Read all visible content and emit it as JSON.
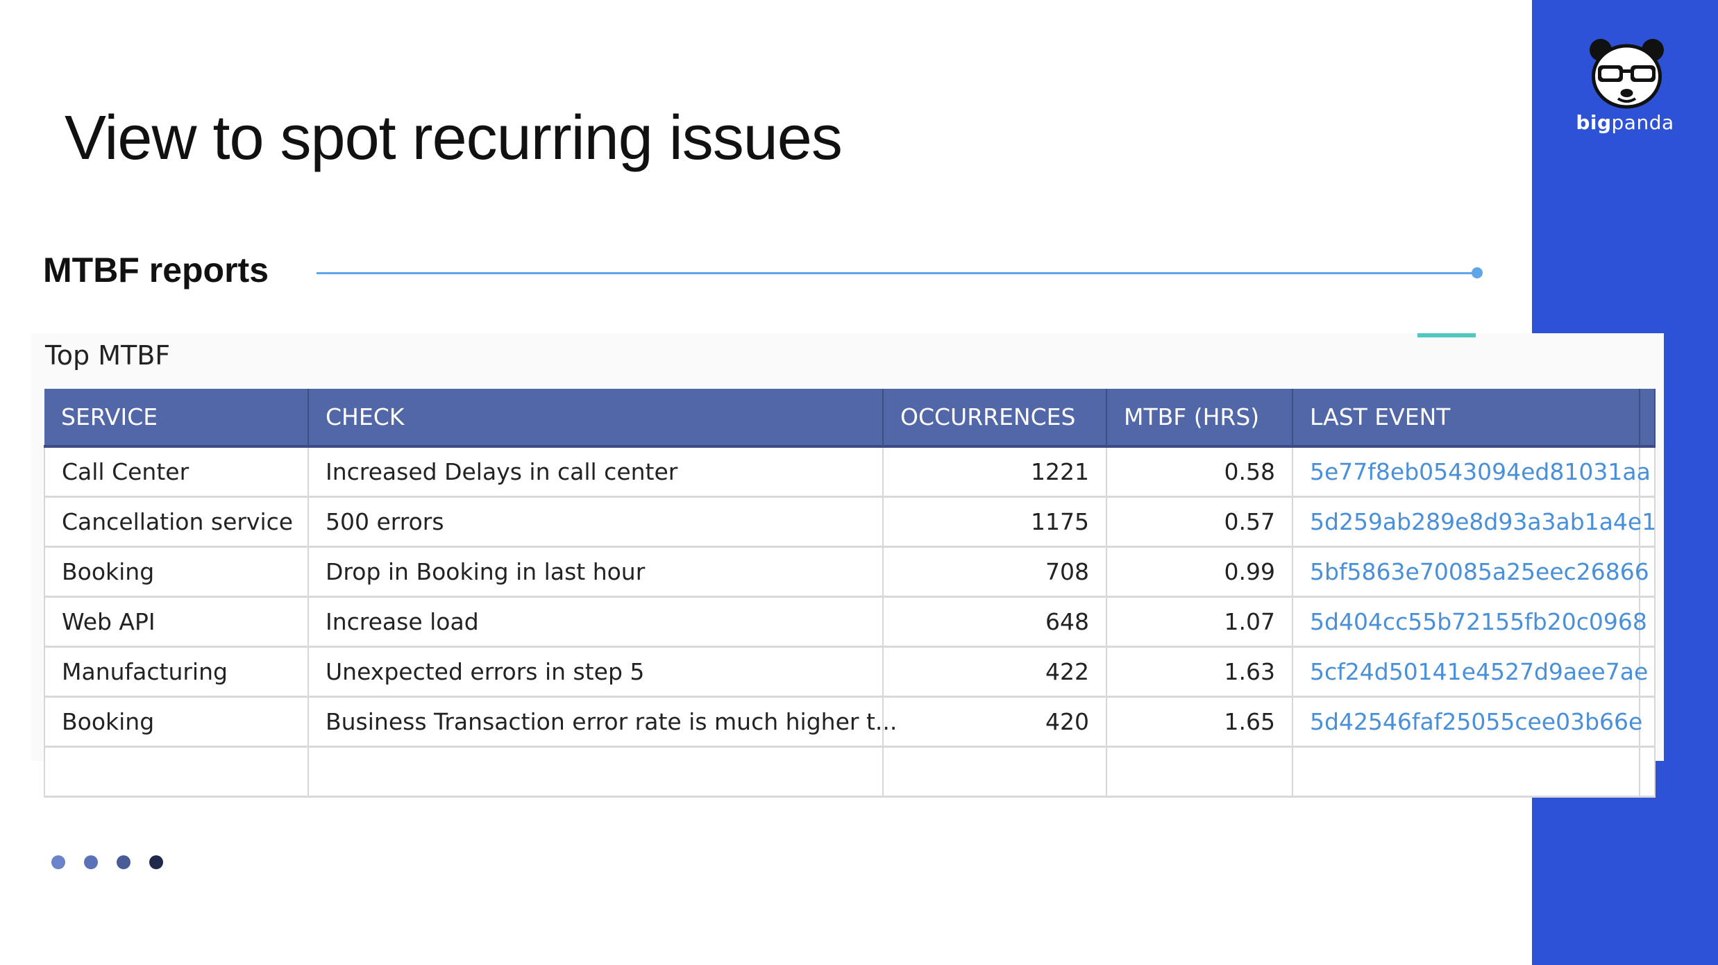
{
  "slide": {
    "title": "View to spot recurring issues"
  },
  "section": {
    "title": "MTBF reports"
  },
  "brand": {
    "name_bold": "big",
    "name_rest": "panda",
    "icon": "panda-logo-icon"
  },
  "table": {
    "title": "Top MTBF",
    "columns": [
      "SERVICE",
      "CHECK",
      "OCCURRENCES",
      "MTBF (HRS)",
      "LAST EVENT"
    ],
    "rows": [
      {
        "service": "Call Center",
        "check": "Increased Delays in call center",
        "occurrences": "1221",
        "mtbf": "0.58",
        "last_event": "5e77f8eb0543094ed81031aa"
      },
      {
        "service": "Cancellation service",
        "check": "500 errors",
        "occurrences": "1175",
        "mtbf": "0.57",
        "last_event": "5d259ab289e8d93a3ab1a4e1"
      },
      {
        "service": "Booking",
        "check": "Drop in Booking in last hour",
        "occurrences": "708",
        "mtbf": "0.99",
        "last_event": "5bf5863e70085a25eec26866"
      },
      {
        "service": "Web API",
        "check": "Increase load",
        "occurrences": "648",
        "mtbf": "1.07",
        "last_event": "5d404cc55b72155fb20c0968"
      },
      {
        "service": "Manufacturing",
        "check": "Unexpected errors in step 5",
        "occurrences": "422",
        "mtbf": "1.63",
        "last_event": "5cf24d50141e4527d9aee7ae"
      },
      {
        "service": "Booking",
        "check": "Business Transaction error rate is much higher t...",
        "occurrences": "420",
        "mtbf": "1.65",
        "last_event": "5d42546faf25055cee03b66e"
      }
    ]
  },
  "pager": {
    "dots": [
      {
        "color": "#6b83c8"
      },
      {
        "color": "#5b72b8"
      },
      {
        "color": "#4a5c98"
      },
      {
        "color": "#1f2a4a"
      }
    ]
  },
  "colors": {
    "brand_panel": "#2d52d6",
    "table_header": "#5267a8",
    "link": "#4a90d9",
    "rule": "#5fa6e8",
    "card_accent": "#4fc8c0"
  }
}
